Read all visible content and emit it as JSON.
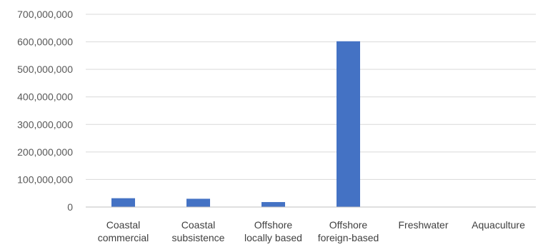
{
  "chart_data": {
    "type": "bar",
    "categories": [
      [
        "Coastal",
        "commercial"
      ],
      [
        "Coastal",
        "subsistence"
      ],
      [
        "Offshore",
        "locally based"
      ],
      [
        "Offshore",
        "foreign-based"
      ],
      [
        "Freshwater"
      ],
      [
        "Aquaculture"
      ]
    ],
    "values": [
      32000000,
      30000000,
      18000000,
      602000000,
      0,
      0
    ],
    "ylim": [
      0,
      700000000
    ],
    "yticks": [
      0,
      100000000,
      200000000,
      300000000,
      400000000,
      500000000,
      600000000,
      700000000
    ],
    "ytick_labels": [
      "0",
      "100,000,000",
      "200,000,000",
      "300,000,000",
      "400,000,000",
      "500,000,000",
      "600,000,000",
      "700,000,000"
    ],
    "grid": true,
    "legend": "none",
    "bar_color": "#4472c4"
  }
}
